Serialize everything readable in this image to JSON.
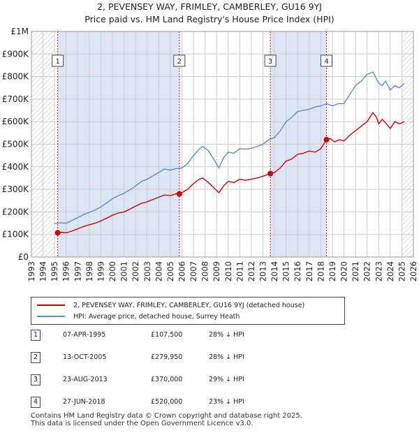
{
  "title_line1": "2, PEVENSEY WAY, FRIMLEY, CAMBERLEY, GU16 9YJ",
  "title_line2": "Price paid vs. HM Land Registry's House Price Index (HPI)",
  "colors": {
    "sales": "#cc0000",
    "hpi": "#5b8ec6",
    "shade": "#dce5f4",
    "grid": "#cccccc"
  },
  "chart_data": {
    "type": "line",
    "ylim": [
      0,
      1000000
    ],
    "xlim": [
      1993.0,
      2026.0
    ],
    "y_tick_labels": [
      "£0",
      "£100K",
      "£200K",
      "£300K",
      "£400K",
      "£500K",
      "£600K",
      "£700K",
      "£800K",
      "£900K",
      "£1M"
    ],
    "x_tick_labels": [
      "1993",
      "1994",
      "1995",
      "1996",
      "1997",
      "1998",
      "1999",
      "2000",
      "2001",
      "2002",
      "2003",
      "2004",
      "2005",
      "2006",
      "2007",
      "2008",
      "2009",
      "2010",
      "2011",
      "2012",
      "2013",
      "2014",
      "2015",
      "2016",
      "2017",
      "2018",
      "2019",
      "2020",
      "2021",
      "2022",
      "2023",
      "2024",
      "2025",
      "2026"
    ],
    "series": [
      {
        "name": "2, PEVENSEY WAY, FRIMLEY, CAMBERLEY, GU16 9YJ (detached house)",
        "x": [
          1995.27,
          1995.6,
          1996.0,
          1996.5,
          1997.0,
          1997.5,
          1998.0,
          1998.5,
          1999.0,
          1999.5,
          2000.0,
          2000.5,
          2001.0,
          2001.5,
          2002.0,
          2002.5,
          2003.0,
          2003.5,
          2004.0,
          2004.5,
          2005.0,
          2005.5,
          2005.78,
          2006.0,
          2006.5,
          2007.0,
          2007.5,
          2007.8,
          2008.3,
          2008.8,
          2009.2,
          2009.6,
          2010.0,
          2010.5,
          2011.0,
          2011.5,
          2012.0,
          2012.5,
          2013.0,
          2013.64,
          2014.0,
          2014.5,
          2015.0,
          2015.5,
          2016.0,
          2016.5,
          2017.0,
          2017.5,
          2018.0,
          2018.49,
          2018.8,
          2019.2,
          2019.6,
          2020.0,
          2020.5,
          2021.0,
          2021.5,
          2022.0,
          2022.5,
          2022.8,
          2023.0,
          2023.3,
          2023.6,
          2024.0,
          2024.4,
          2024.8,
          2025.2
        ],
        "values": [
          107500,
          110000,
          107000,
          115000,
          125000,
          135000,
          143000,
          150000,
          160000,
          172000,
          185000,
          195000,
          200000,
          212000,
          225000,
          238000,
          245000,
          255000,
          265000,
          275000,
          272000,
          280000,
          279950,
          285000,
          300000,
          325000,
          345000,
          350000,
          330000,
          305000,
          285000,
          315000,
          335000,
          330000,
          345000,
          340000,
          345000,
          350000,
          358000,
          370000,
          375000,
          395000,
          425000,
          435000,
          455000,
          460000,
          470000,
          465000,
          480000,
          520000,
          525000,
          510000,
          520000,
          515000,
          540000,
          560000,
          580000,
          600000,
          640000,
          620000,
          590000,
          610000,
          595000,
          570000,
          600000,
          590000,
          600000
        ]
      },
      {
        "name": "HPI: Average price, detached house, Surrey Heath",
        "x": [
          1995.0,
          1995.5,
          1996.0,
          1996.5,
          1997.0,
          1997.5,
          1998.0,
          1998.5,
          1999.0,
          1999.5,
          2000.0,
          2000.5,
          2001.0,
          2001.5,
          2002.0,
          2002.5,
          2003.0,
          2003.5,
          2004.0,
          2004.5,
          2005.0,
          2005.5,
          2006.0,
          2006.5,
          2007.0,
          2007.5,
          2007.8,
          2008.3,
          2008.8,
          2009.2,
          2009.6,
          2010.0,
          2010.5,
          2011.0,
          2011.5,
          2012.0,
          2012.5,
          2013.0,
          2013.5,
          2014.0,
          2014.5,
          2015.0,
          2015.5,
          2016.0,
          2016.5,
          2017.0,
          2017.5,
          2018.0,
          2018.5,
          2019.0,
          2019.5,
          2020.0,
          2020.5,
          2021.0,
          2021.5,
          2022.0,
          2022.5,
          2022.8,
          2023.0,
          2023.3,
          2023.6,
          2024.0,
          2024.4,
          2024.8,
          2025.2
        ],
        "values": [
          148000,
          152000,
          150000,
          162000,
          175000,
          188000,
          198000,
          208000,
          222000,
          240000,
          258000,
          272000,
          282000,
          298000,
          315000,
          335000,
          345000,
          360000,
          375000,
          390000,
          385000,
          392000,
          395000,
          415000,
          450000,
          478000,
          490000,
          470000,
          430000,
          395000,
          440000,
          465000,
          460000,
          480000,
          478000,
          482000,
          490000,
          500000,
          520000,
          530000,
          560000,
          600000,
          620000,
          645000,
          650000,
          655000,
          665000,
          670000,
          680000,
          670000,
          680000,
          680000,
          720000,
          760000,
          780000,
          810000,
          820000,
          790000,
          770000,
          760000,
          780000,
          740000,
          760000,
          750000,
          770000
        ]
      }
    ],
    "sales": [
      {
        "label": "1",
        "x": 1995.27,
        "date": "07-APR-1995",
        "price": "£107,500",
        "value": 107500,
        "hpi": "28% ↓ HPI"
      },
      {
        "label": "2",
        "x": 2005.78,
        "date": "13-OCT-2005",
        "price": "£279,950",
        "value": 279950,
        "hpi": "28% ↓ HPI"
      },
      {
        "label": "3",
        "x": 2013.64,
        "date": "23-AUG-2013",
        "price": "£370,000",
        "value": 370000,
        "hpi": "29% ↓ HPI"
      },
      {
        "label": "4",
        "x": 2018.49,
        "date": "27-JUN-2018",
        "price": "£520,000",
        "value": 520000,
        "hpi": "23% ↓ HPI"
      }
    ],
    "shaded_periods": [
      [
        1995.27,
        2005.78
      ],
      [
        2013.64,
        2018.49
      ]
    ],
    "hatched_periods": [
      [
        1993.0,
        1995.0
      ],
      [
        2025.0,
        2026.0
      ]
    ]
  },
  "legend": {
    "sales_label": "2, PEVENSEY WAY, FRIMLEY, CAMBERLEY, GU16 9YJ (detached house)",
    "hpi_label": "HPI: Average price, detached house, Surrey Heath"
  },
  "footer": {
    "line1": "Contains HM Land Registry data © Crown copyright and database right 2025.",
    "line2": "This data is licensed under the Open Government Licence v3.0."
  }
}
